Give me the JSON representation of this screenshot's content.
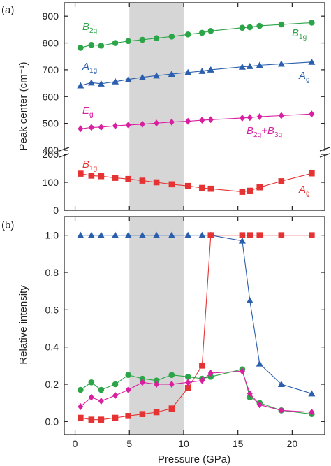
{
  "chart_data": [
    {
      "type": "line",
      "panel_label": "(a)",
      "ylabel": "Peak center (cm⁻¹)",
      "xlim": [
        -1,
        23
      ],
      "axis_break": true,
      "ylim_upper": [
        400,
        950
      ],
      "ylim_lower": [
        0,
        200
      ],
      "yticks_upper": [
        400,
        500,
        600,
        700,
        800,
        900
      ],
      "yticks_lower": [
        0,
        100,
        200
      ],
      "shaded_x_range": [
        5,
        10
      ],
      "series": [
        {
          "name": "B2g / B1g",
          "color": "#2ca548",
          "marker": "circle",
          "line": "#2ca548",
          "x": [
            0.5,
            1.5,
            2.4,
            3.7,
            4.9,
            6.2,
            7.5,
            8.9,
            10.4,
            11.7,
            12.5,
            15.4,
            16.1,
            17.0,
            19.0,
            21.8
          ],
          "y": [
            782,
            793,
            790,
            800,
            807,
            812,
            818,
            824,
            832,
            838,
            845,
            857,
            859,
            864,
            869,
            876
          ]
        },
        {
          "name": "A1g / Ag",
          "color": "#2b5fad",
          "marker": "triangle",
          "line": "#2b5fad",
          "x": [
            0.5,
            1.5,
            2.4,
            3.7,
            4.9,
            6.2,
            7.5,
            8.9,
            10.4,
            11.7,
            12.5,
            15.4,
            16.1,
            17.0,
            19.0,
            21.8
          ],
          "y": [
            641,
            652,
            648,
            656,
            664,
            672,
            678,
            684,
            690,
            695,
            700,
            711,
            713,
            717,
            722,
            729
          ]
        },
        {
          "name": "Eg / B2g+B3g",
          "color": "#d81fa0",
          "marker": "diamond",
          "line": "#d81fa0",
          "x": [
            0.5,
            1.5,
            2.4,
            3.7,
            4.9,
            6.2,
            7.5,
            8.9,
            10.4,
            11.7,
            12.5,
            15.4,
            16.1,
            17.0,
            19.0,
            21.8
          ],
          "y": [
            480,
            485,
            486,
            491,
            494,
            497,
            501,
            505,
            508,
            512,
            514,
            520,
            522,
            525,
            529,
            535
          ]
        },
        {
          "name": "B1g / Ag",
          "color": "#e53333",
          "marker": "square",
          "line": "#e53333",
          "x": [
            0.5,
            1.5,
            2.4,
            3.7,
            4.9,
            6.2,
            7.5,
            8.9,
            10.4,
            11.7,
            12.5,
            15.4,
            16.1,
            17.0,
            19.0,
            21.8
          ],
          "y": [
            131,
            124,
            122,
            116,
            112,
            106,
            100,
            93,
            87,
            80,
            77,
            66,
            70,
            82,
            104,
            132
          ]
        }
      ],
      "annotations": [
        {
          "base": "B",
          "sub": "2g",
          "color": "#2ca548"
        },
        {
          "base": "B",
          "sub": "1g",
          "color": "#2ca548"
        },
        {
          "base": "A",
          "sub": "1g",
          "color": "#2b5fad"
        },
        {
          "base": "A",
          "sub": "g",
          "color": "#2b5fad"
        },
        {
          "base": "E",
          "sub": "g",
          "color": "#d81fa0"
        },
        {
          "base": "B",
          "sub": "2g",
          "extra_base": "+B",
          "extra_sub": "3g",
          "color": "#d81fa0"
        },
        {
          "base": "B",
          "sub": "1g",
          "color": "#e53333"
        },
        {
          "base": "A",
          "sub": "g",
          "color": "#e53333"
        }
      ]
    },
    {
      "type": "line",
      "panel_label": "(b)",
      "ylabel": "Relative intensity",
      "xlabel": "Pressure (GPa)",
      "xlim": [
        -1,
        23
      ],
      "ylim": [
        -0.07,
        1.1
      ],
      "xticks": [
        0,
        5,
        10,
        15,
        20
      ],
      "yticks": [
        0.0,
        0.2,
        0.4,
        0.6,
        0.8,
        1.0
      ],
      "shaded_x_range": [
        5,
        10
      ],
      "series": [
        {
          "name": "A1g",
          "color": "#2b5fad",
          "marker": "triangle",
          "x": [
            0.5,
            1.5,
            2.4,
            3.7,
            4.9,
            6.2,
            7.5,
            8.9,
            10.4,
            11.7,
            12.5,
            15.4,
            16.1,
            17.0,
            19.0,
            21.8
          ],
          "y": [
            1.0,
            1.0,
            1.0,
            1.0,
            1.0,
            1.0,
            1.0,
            1.0,
            1.0,
            1.0,
            1.0,
            0.97,
            0.65,
            0.31,
            0.2,
            0.15
          ]
        },
        {
          "name": "B1g",
          "color": "#e53333",
          "marker": "square",
          "x": [
            0.5,
            1.5,
            2.4,
            3.7,
            4.9,
            6.2,
            7.5,
            8.9,
            10.4,
            11.7,
            12.5,
            15.4,
            16.1,
            17.0,
            19.0,
            21.8
          ],
          "y": [
            0.02,
            0.01,
            0.01,
            0.02,
            0.03,
            0.04,
            0.05,
            0.07,
            0.18,
            0.3,
            1.0,
            1.0,
            1.0,
            1.0,
            1.0,
            1.0
          ]
        },
        {
          "name": "B2g",
          "color": "#2ca548",
          "marker": "circle",
          "x": [
            0.5,
            1.5,
            2.4,
            3.7,
            4.9,
            6.2,
            7.5,
            8.9,
            10.4,
            11.7,
            12.5,
            15.4,
            16.1,
            17.0,
            19.0,
            21.8
          ],
          "y": [
            0.17,
            0.21,
            0.17,
            0.2,
            0.25,
            0.23,
            0.22,
            0.25,
            0.24,
            0.23,
            0.24,
            0.28,
            0.13,
            0.1,
            0.06,
            0.04
          ]
        },
        {
          "name": "Eg",
          "color": "#d81fa0",
          "marker": "diamond",
          "x": [
            0.5,
            1.5,
            2.4,
            3.7,
            4.9,
            6.2,
            7.5,
            8.9,
            10.4,
            11.7,
            12.5,
            15.4,
            16.1,
            17.0,
            19.0,
            21.8
          ],
          "y": [
            0.08,
            0.13,
            0.11,
            0.14,
            0.17,
            0.21,
            0.2,
            0.2,
            0.21,
            0.22,
            0.26,
            0.27,
            0.15,
            0.09,
            0.06,
            0.05
          ]
        }
      ]
    }
  ]
}
